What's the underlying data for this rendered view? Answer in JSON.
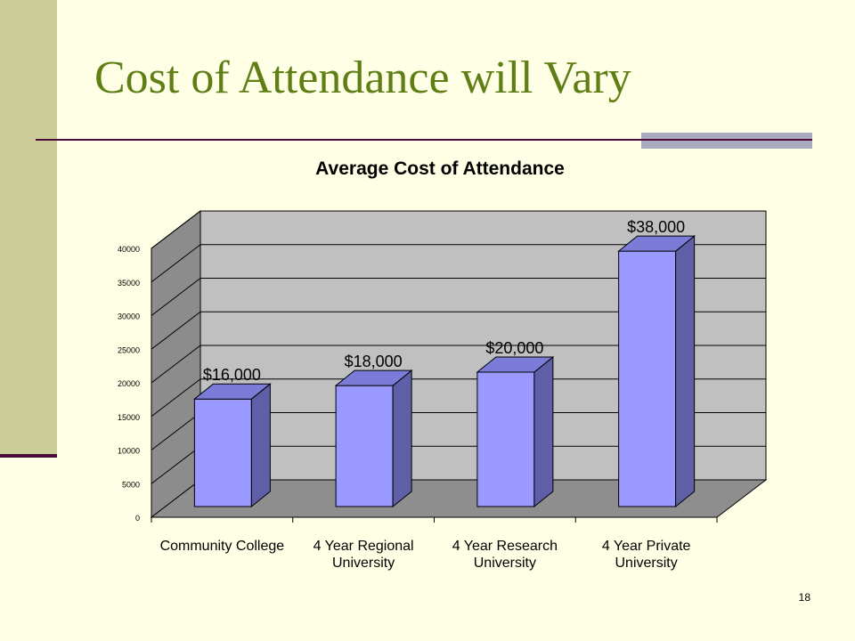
{
  "slide": {
    "title": "Cost of Attendance will Vary",
    "page_number": "18"
  },
  "chart_data": {
    "type": "bar",
    "title": "Average Cost of Attendance",
    "categories": [
      [
        "Community College"
      ],
      [
        "4 Year Regional",
        "University"
      ],
      [
        "4 Year Research",
        "University"
      ],
      [
        "4 Year Private",
        "University"
      ]
    ],
    "values": [
      16000,
      18000,
      20000,
      38000
    ],
    "data_labels": [
      "$16,000",
      "$18,000",
      "$20,000",
      "$38,000"
    ],
    "yticks": [
      0,
      5000,
      10000,
      15000,
      20000,
      25000,
      30000,
      35000,
      40000
    ],
    "ylim": [
      0,
      40000
    ],
    "grid": true,
    "legend": "none",
    "colors": {
      "bar_front": "#9999ff",
      "bar_side": "#5f5fa8",
      "bar_top": "#7b7bd8",
      "back_wall": "#c0c0c0",
      "side_wall": "#8c8c8c",
      "floor": "#8e8e8e"
    }
  }
}
